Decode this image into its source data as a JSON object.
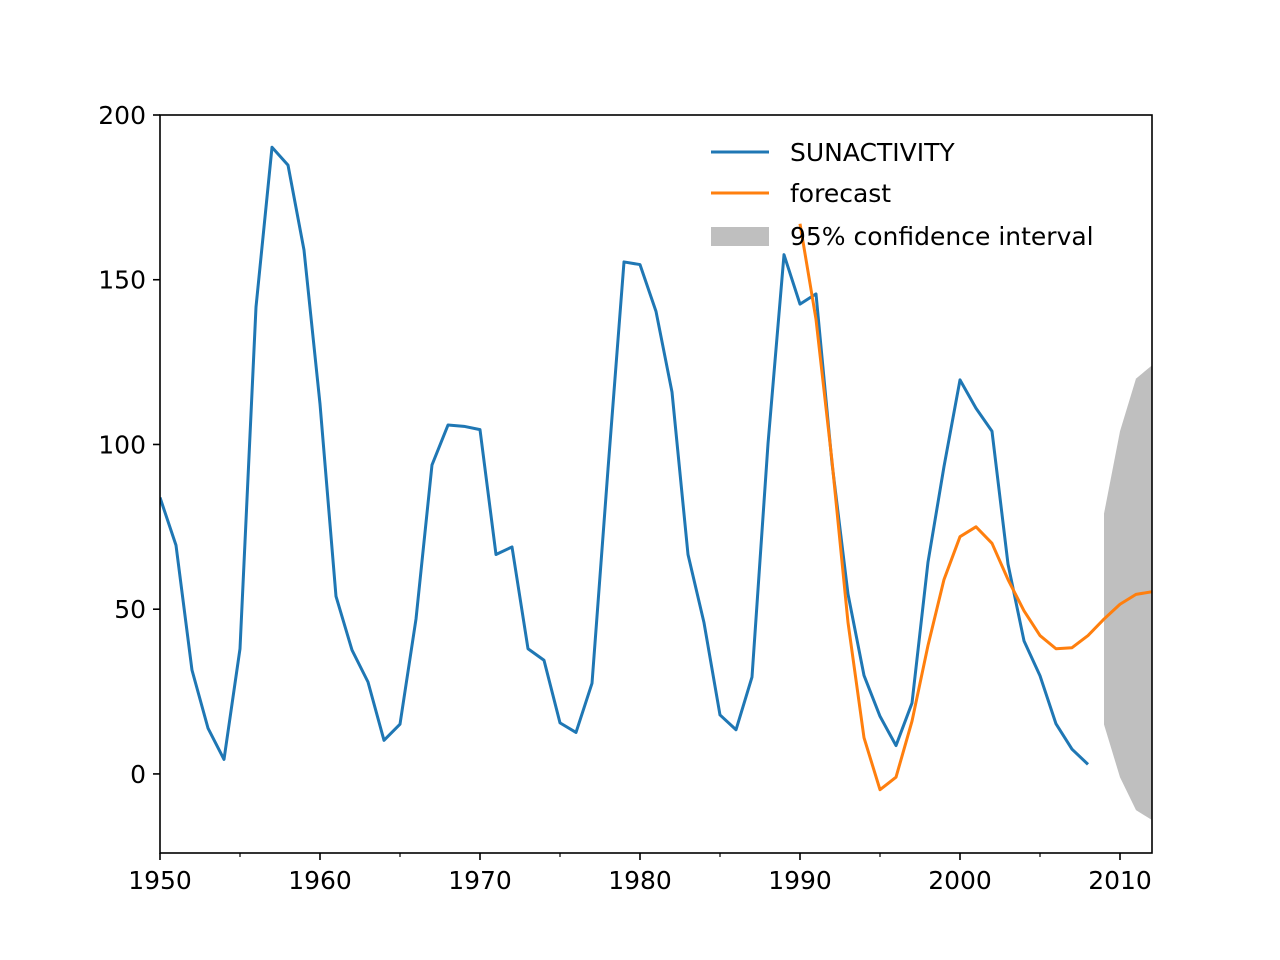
{
  "chart_data": {
    "type": "line",
    "title": "",
    "xlabel": "",
    "ylabel": "",
    "xlim": [
      1950,
      2012
    ],
    "ylim": [
      -24,
      200
    ],
    "grid": false,
    "legend_position": "top-right",
    "x_ticks": [
      1950,
      1960,
      1970,
      1980,
      1990,
      2000,
      2010
    ],
    "x_tick_labels": [
      "1950",
      "1960",
      "1970",
      "1980",
      "1990",
      "2000",
      "2010"
    ],
    "y_ticks": [
      0,
      50,
      100,
      150,
      200
    ],
    "y_tick_labels": [
      "0",
      "50",
      "100",
      "150",
      "200"
    ],
    "series": [
      {
        "name": "SUNACTIVITY",
        "color": "#1f77b4",
        "x": [
          1950,
          1951,
          1952,
          1953,
          1954,
          1955,
          1956,
          1957,
          1958,
          1959,
          1960,
          1961,
          1962,
          1963,
          1964,
          1965,
          1966,
          1967,
          1968,
          1969,
          1970,
          1971,
          1972,
          1973,
          1974,
          1975,
          1976,
          1977,
          1978,
          1979,
          1980,
          1981,
          1982,
          1983,
          1984,
          1985,
          1986,
          1987,
          1988,
          1989,
          1990,
          1991,
          1992,
          1993,
          1994,
          1995,
          1996,
          1997,
          1998,
          1999,
          2000,
          2001,
          2002,
          2003,
          2004,
          2005,
          2006,
          2007,
          2008
        ],
        "y": [
          83.9,
          69.4,
          31.5,
          13.9,
          4.4,
          38.0,
          141.7,
          190.2,
          184.8,
          159.0,
          112.3,
          53.9,
          37.6,
          27.9,
          10.2,
          15.1,
          47.0,
          93.8,
          105.9,
          105.5,
          104.5,
          66.6,
          68.9,
          38.0,
          34.5,
          15.5,
          12.6,
          27.5,
          92.5,
          155.4,
          154.6,
          140.4,
          115.9,
          66.6,
          45.9,
          17.9,
          13.4,
          29.4,
          100.2,
          157.6,
          142.6,
          145.7,
          94.3,
          54.6,
          29.9,
          17.5,
          8.6,
          21.5,
          64.3,
          93.3,
          119.6,
          111.0,
          104.0,
          63.7,
          40.4,
          29.8,
          15.2,
          7.5,
          2.9
        ]
      },
      {
        "name": "forecast",
        "color": "#ff7f0e",
        "x": [
          1990,
          1991,
          1992,
          1993,
          1994,
          1995,
          1996,
          1997,
          1998,
          1999,
          2000,
          2001,
          2002,
          2003,
          2004,
          2005,
          2006,
          2007,
          2008,
          2009,
          2010,
          2011,
          2012
        ],
        "y": [
          167.0,
          138.0,
          95.0,
          46.0,
          11.0,
          -4.8,
          -1.0,
          16.0,
          39.0,
          59.0,
          72.0,
          75.0,
          70.0,
          59.0,
          49.5,
          42.0,
          38.0,
          38.3,
          42.0,
          47.0,
          51.5,
          54.5,
          55.3
        ]
      }
    ],
    "confidence_interval": {
      "name": "95% confidence interval",
      "color": "#bfbfbf",
      "x": [
        2009,
        2010,
        2011,
        2012
      ],
      "lower": [
        15,
        -1,
        -11,
        -14
      ],
      "upper": [
        79,
        104,
        120,
        124
      ]
    }
  }
}
